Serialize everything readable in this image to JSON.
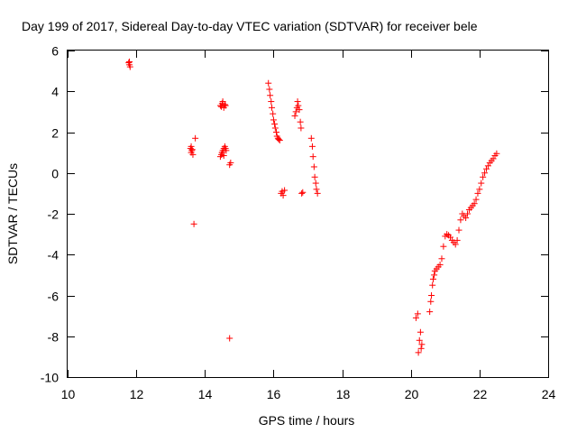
{
  "chart_data": {
    "type": "scatter",
    "title": "Day 199 of 2017, Sidereal Day-to-day VTEC variation (SDTVAR) for receiver bele",
    "xlabel": "GPS time / hours",
    "ylabel": "SDTVAR / TECUs",
    "xlim": [
      10,
      24
    ],
    "ylim": [
      -10,
      6
    ],
    "xticks": [
      10,
      12,
      14,
      16,
      18,
      20,
      22,
      24
    ],
    "yticks": [
      -10,
      -8,
      -6,
      -4,
      -2,
      0,
      2,
      4,
      6
    ],
    "grid": false,
    "marker": "+",
    "colors": {
      "points": "#ff0000",
      "axes": "#000000"
    },
    "series": [
      {
        "name": "SDTVAR",
        "x": [
          11.78,
          11.8,
          11.82,
          11.8,
          13.58,
          13.6,
          13.62,
          13.65,
          13.6,
          13.63,
          13.72,
          13.68,
          14.45,
          14.5,
          14.55,
          14.6,
          14.52,
          14.48,
          14.58,
          14.45,
          14.48,
          14.5,
          14.52,
          14.55,
          14.58,
          14.6,
          14.62,
          14.5,
          14.55,
          14.72,
          14.75,
          14.72,
          15.85,
          15.88,
          15.9,
          15.93,
          15.95,
          15.98,
          16.0,
          16.03,
          16.05,
          16.08,
          16.1,
          16.13,
          16.15,
          16.18,
          16.22,
          16.25,
          16.28,
          16.32,
          16.62,
          16.65,
          16.68,
          16.7,
          16.72,
          16.75,
          16.78,
          16.8,
          16.82,
          16.85,
          17.1,
          17.13,
          17.15,
          17.18,
          17.2,
          17.23,
          17.25,
          17.28,
          20.15,
          20.2,
          20.22,
          20.25,
          20.28,
          20.32,
          20.3,
          20.55,
          20.58,
          20.6,
          20.63,
          20.65,
          20.68,
          20.7,
          20.75,
          20.8,
          20.85,
          20.9,
          20.95,
          21.0,
          21.05,
          21.1,
          21.15,
          21.2,
          21.25,
          21.3,
          21.35,
          21.4,
          21.45,
          21.5,
          21.55,
          21.6,
          21.65,
          21.7,
          21.75,
          21.8,
          21.85,
          21.9,
          21.95,
          22.0,
          22.05,
          22.1,
          22.15,
          22.2,
          22.25,
          22.3,
          22.35,
          22.4,
          22.45,
          22.5
        ],
        "y": [
          5.4,
          5.3,
          5.2,
          5.45,
          1.2,
          1.0,
          1.1,
          0.9,
          1.3,
          1.15,
          1.7,
          -2.5,
          3.3,
          3.4,
          3.2,
          3.3,
          3.5,
          3.25,
          3.35,
          0.8,
          0.9,
          1.0,
          1.1,
          1.2,
          1.3,
          1.2,
          1.1,
          1.0,
          0.85,
          0.4,
          0.5,
          -8.1,
          4.4,
          4.1,
          3.8,
          3.5,
          3.2,
          2.9,
          2.6,
          2.4,
          2.2,
          2.0,
          1.8,
          1.7,
          1.65,
          1.6,
          -1.0,
          -0.9,
          -1.1,
          -0.85,
          2.8,
          3.0,
          3.2,
          3.5,
          3.3,
          3.1,
          2.5,
          2.2,
          -1.0,
          -0.95,
          1.7,
          1.3,
          0.8,
          0.3,
          -0.2,
          -0.5,
          -0.8,
          -1.0,
          -7.1,
          -6.9,
          -8.8,
          -8.2,
          -7.8,
          -8.4,
          -8.6,
          -6.8,
          -6.3,
          -6.0,
          -5.5,
          -5.2,
          -5.0,
          -4.8,
          -4.7,
          -4.6,
          -4.5,
          -4.2,
          -3.6,
          -3.1,
          -3.0,
          -3.05,
          -3.15,
          -3.3,
          -3.4,
          -3.5,
          -3.3,
          -2.8,
          -2.3,
          -2.0,
          -2.1,
          -2.2,
          -2.0,
          -1.8,
          -1.7,
          -1.6,
          -1.5,
          -1.3,
          -1.0,
          -0.8,
          -0.5,
          -0.2,
          0.0,
          0.2,
          0.35,
          0.5,
          0.6,
          0.7,
          0.85,
          0.95
        ]
      }
    ]
  }
}
